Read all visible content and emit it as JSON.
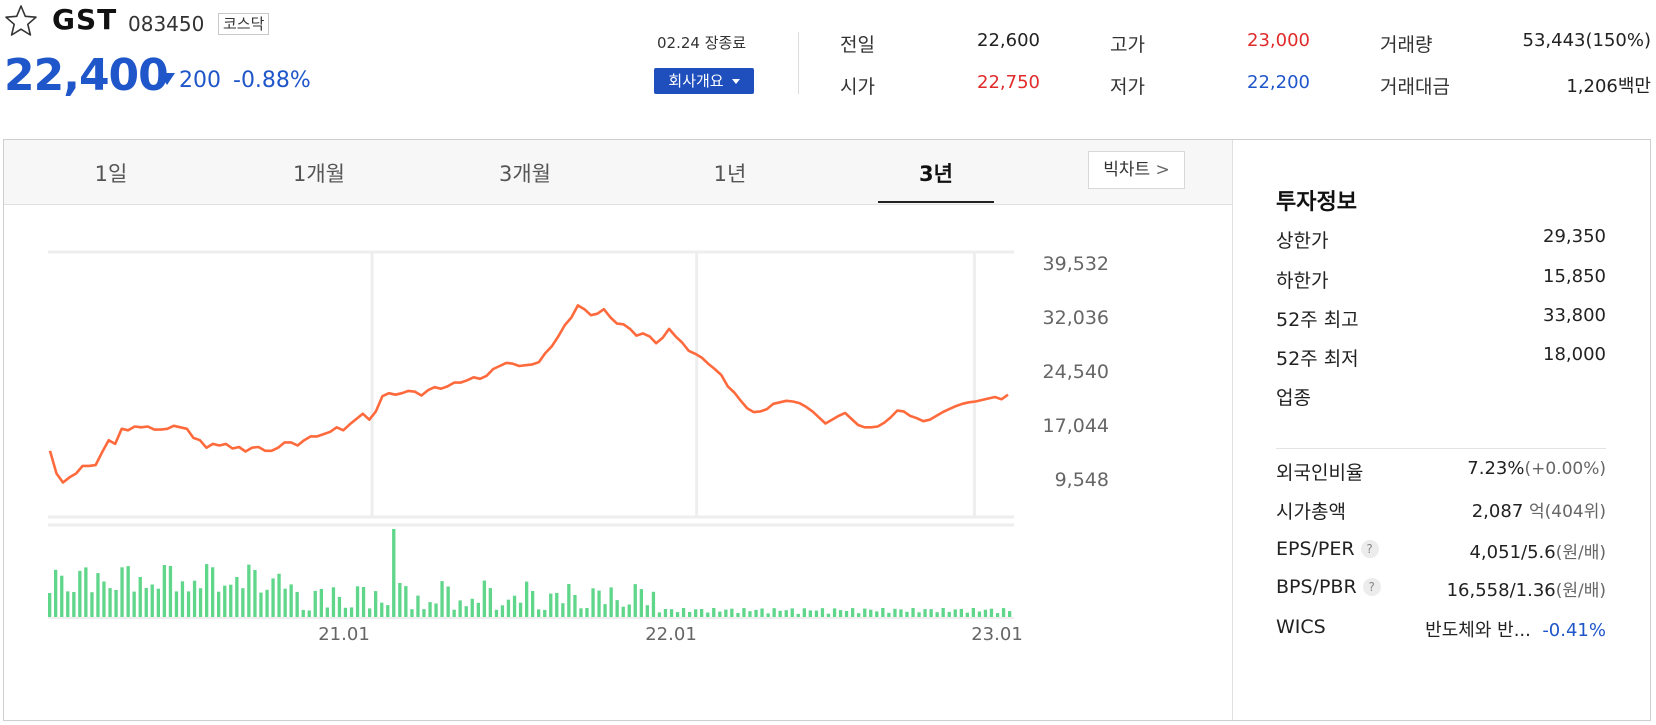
{
  "stock": {
    "name": "GST",
    "code": "083450",
    "market": "코스닥",
    "price": "22,400",
    "change": "200",
    "change_pct": "-0.88%",
    "close_time": "02.24 장종료",
    "company_button": "회사개요"
  },
  "quotes": {
    "prev_label": "전일",
    "prev": "22,600",
    "open_label": "시가",
    "open": "22,750",
    "high_label": "고가",
    "high": "23,000",
    "low_label": "저가",
    "low": "22,200",
    "volume_label": "거래량",
    "volume": "53,443(150%)",
    "amount_label": "거래대금",
    "amount": "1,206",
    "amount_unit": "백만"
  },
  "tabs": [
    "1일",
    "1개월",
    "3개월",
    "1년",
    "3년"
  ],
  "active_tab": "3년",
  "big_chart_label": "빅차트",
  "invest": {
    "title": "투자정보",
    "upper_limit_label": "상한가",
    "upper_limit": "29,350",
    "lower_limit_label": "하한가",
    "lower_limit": "15,850",
    "high52_label": "52주 최고",
    "high52": "33,800",
    "low52_label": "52주 최저",
    "low52": "18,000",
    "industry_label": "업종",
    "foreign_label": "외국인비율",
    "foreign": "7.23%",
    "foreign_chg": "(+0.00%)",
    "mcap_label": "시가총액",
    "mcap": "2,087",
    "mcap_unit": "억(404위)",
    "eps_label": "EPS/PER",
    "eps": "4,051/5.6",
    "eps_unit": "(원/배)",
    "bps_label": "BPS/PBR",
    "bps": "16,558/1.36",
    "bps_unit": "(원/배)",
    "wics_label": "WICS",
    "wics": "반도체와 반...",
    "wics_chg": "-0.41%"
  },
  "colors": {
    "up": "#e12b2b",
    "down": "#1f56c9",
    "line": "#ff6a3d",
    "volume": "#5fd68a"
  },
  "chart_data": {
    "type": "line",
    "yticks": [
      "39,532",
      "32,036",
      "24,540",
      "17,044",
      "9,548"
    ],
    "ylim": [
      9548,
      39532
    ],
    "xticks": [
      "21.01",
      "22.01",
      "23.01"
    ],
    "price": [
      14600,
      11600,
      10400,
      11100,
      11600,
      12600,
      12600,
      12700,
      14400,
      16000,
      15500,
      17500,
      17300,
      17800,
      17700,
      17800,
      17400,
      17400,
      17500,
      17900,
      17700,
      17500,
      16300,
      16000,
      15000,
      15500,
      15300,
      15500,
      14900,
      15100,
      14500,
      15000,
      15100,
      14600,
      14600,
      15000,
      15700,
      15700,
      15300,
      16000,
      16500,
      16500,
      16800,
      17100,
      17700,
      17300,
      18100,
      18800,
      19500,
      18700,
      19800,
      21800,
      22200,
      22000,
      22200,
      22500,
      22400,
      21900,
      22600,
      23000,
      22800,
      23100,
      23600,
      23600,
      23900,
      24300,
      24100,
      24500,
      25400,
      25800,
      26200,
      26100,
      25800,
      25900,
      26000,
      26300,
      27500,
      28400,
      29700,
      31200,
      32200,
      33800,
      33300,
      32500,
      32700,
      33300,
      32200,
      31400,
      31300,
      30700,
      29800,
      30100,
      29700,
      28800,
      29500,
      30700,
      29700,
      28900,
      27800,
      27400,
      26900,
      26100,
      25400,
      24600,
      23100,
      22300,
      21200,
      20200,
      19700,
      19800,
      20100,
      20800,
      21000,
      21200,
      21100,
      20900,
      20400,
      19800,
      19000,
      18200,
      18700,
      19200,
      19600,
      18800,
      18000,
      17700,
      17700,
      17800,
      18300,
      19000,
      19900,
      19800,
      19200,
      18900,
      18500,
      18700,
      19200,
      19700,
      20100,
      20500,
      20800,
      21000,
      21100,
      21300,
      21500,
      21700,
      21400,
      22000
    ]
  }
}
